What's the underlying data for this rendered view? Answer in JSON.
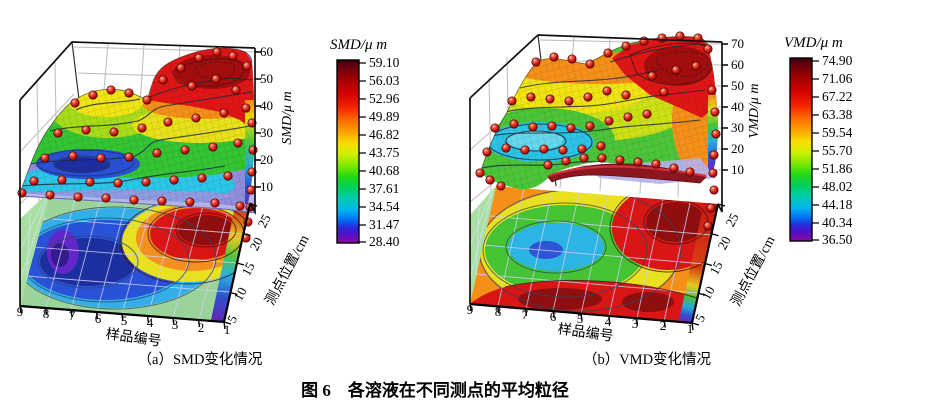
{
  "figure_caption": "图 6　各溶液在不同测点的平均粒径",
  "panels": [
    {
      "caption": "（a）SMD变化情况",
      "colorbar_title": "SMD/μ m",
      "colorbar_ticks": [
        "59.10",
        "56.03",
        "52.96",
        "49.89",
        "46.82",
        "43.75",
        "40.68",
        "37.61",
        "34.54",
        "31.47",
        "28.40"
      ],
      "x_label": "样品编号",
      "x_ticks": [
        "9",
        "8",
        "7",
        "6",
        "5",
        "4",
        "3",
        "2",
        "1"
      ],
      "y_label": "测点位置/cm",
      "y_ticks": [
        "5",
        "10",
        "15",
        "20",
        "25"
      ],
      "z_label": "SMD/μ m",
      "z_ticks": [
        "60",
        "50",
        "40",
        "30",
        "20",
        "10"
      ]
    },
    {
      "caption": "（b）VMD变化情况",
      "colorbar_title": "VMD/μ m",
      "colorbar_ticks": [
        "74.90",
        "71.06",
        "67.22",
        "63.38",
        "59.54",
        "55.70",
        "51.86",
        "48.02",
        "44.18",
        "40.34",
        "36.50"
      ],
      "x_label": "样品编号",
      "x_ticks": [
        "9",
        "8",
        "7",
        "6",
        "5",
        "4",
        "3",
        "2",
        "1"
      ],
      "y_label": "测点位置/cm",
      "y_ticks": [
        "5",
        "10",
        "15",
        "20",
        "25"
      ],
      "z_label": "VMD/μ m",
      "z_ticks": [
        "70",
        "60",
        "50",
        "40",
        "30",
        "20",
        "10"
      ]
    }
  ],
  "chart_data": [
    {
      "type": "surface",
      "title": "（a）SMD变化情况",
      "xlabel": "样品编号",
      "ylabel": "测点位置/cm",
      "zlabel": "SMD/μm",
      "x_ticks": [
        9,
        8,
        7,
        6,
        5,
        4,
        3,
        2,
        1
      ],
      "y_ticks": [
        5,
        10,
        15,
        20,
        25
      ],
      "z_ticks": [
        60,
        50,
        40,
        30,
        20,
        10
      ],
      "x_range": [
        1,
        9
      ],
      "y_range": [
        5,
        25
      ],
      "colorbar": {
        "title": "SMD/μm",
        "max": 59.1,
        "min": 28.4,
        "levels": [
          59.1,
          56.03,
          52.96,
          49.89,
          46.82,
          43.75,
          40.68,
          37.61,
          34.54,
          31.47,
          28.4
        ]
      },
      "markers": "red spheres at measurement grid points; lower translucent plane with 2D contour projection on floor",
      "features": {
        "high_region": "样品编号 1–4, 测点位置 15–25 cm, SMD ≈ 50–59 μm (red plateau)",
        "low_region": "样品编号 5–9, 测点位置 5–10 cm, SMD ≈ 28–35 μm (blue/purple valley)",
        "mid_region": "样品编号 5–9, 测点位置 20–25 cm, SMD ≈ 43–47 μm (yellow-green plateau)"
      }
    },
    {
      "type": "surface",
      "title": "（b）VMD变化情况",
      "xlabel": "样品编号",
      "ylabel": "测点位置/cm",
      "zlabel": "VMD/μm",
      "x_ticks": [
        9,
        8,
        7,
        6,
        5,
        4,
        3,
        2,
        1
      ],
      "y_ticks": [
        5,
        10,
        15,
        20,
        25
      ],
      "z_ticks": [
        70,
        60,
        50,
        40,
        30,
        20,
        10
      ],
      "x_range": [
        1,
        9
      ],
      "y_range": [
        5,
        25
      ],
      "colorbar": {
        "title": "VMD/μm",
        "max": 74.9,
        "min": 36.5,
        "levels": [
          74.9,
          71.06,
          67.22,
          63.38,
          59.54,
          55.7,
          51.86,
          48.02,
          44.18,
          40.34,
          36.5
        ]
      },
      "markers": "red spheres at measurement grid points; surface folds below translucent plane at front; 2D contour projection on floor",
      "features": {
        "high_region": "样品编号 1–3, 测点位置 15–25 cm, VMD ≈ 67–75 μm (red peak)",
        "low_region": "样品编号 6–8, 测点位置 10–15 cm, VMD ≈ 44–48 μm (cyan basin)",
        "front_fold": "dark-red ridge where surface dips below reference plane near 测点位置 5–10 cm"
      }
    }
  ],
  "palette": {
    "sphere": "#cc1810",
    "contour_line": "#1c2c3c",
    "wall_grid": "#bbbbbb",
    "floor_grid": "#cdd0f5",
    "reference_plane": "#b7b3ee",
    "wall_below_surface": "#aadfa2",
    "surface_low": "#8e8edc",
    "surface_high": "#a50d0d",
    "rainbow": [
      "#5c0010",
      "#9b0000",
      "#e01010",
      "#f46c00",
      "#fca800",
      "#f8e000",
      "#a8e800",
      "#20d818",
      "#00ccb4",
      "#00a0f0",
      "#2430e0",
      "#8c0cb4"
    ]
  }
}
